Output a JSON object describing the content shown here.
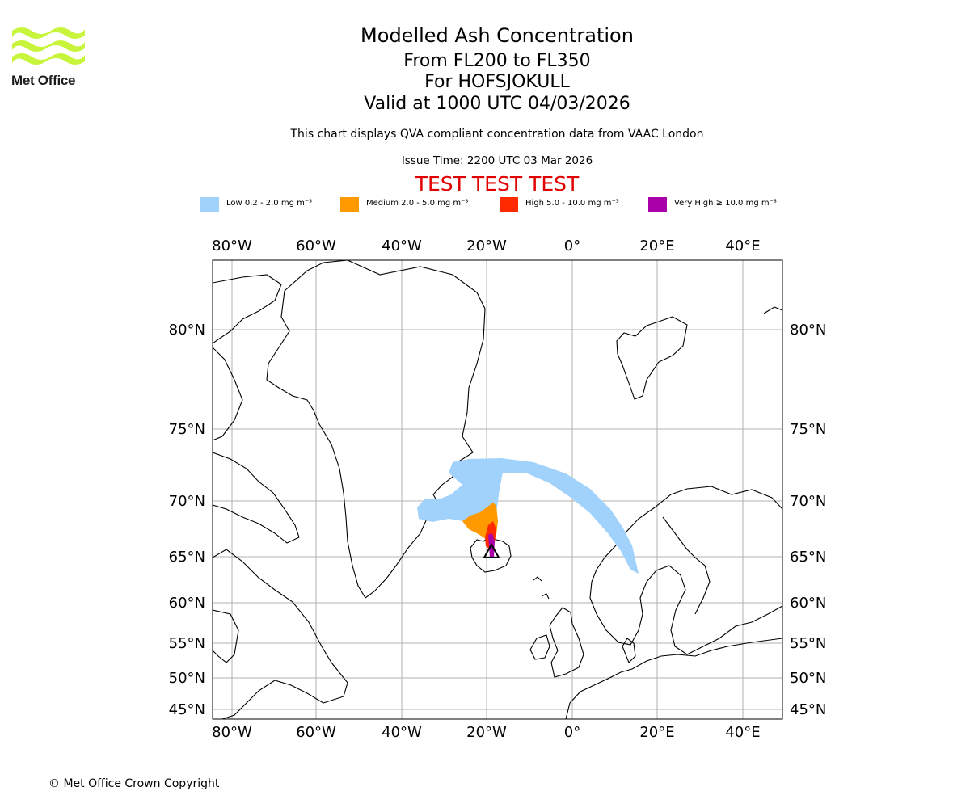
{
  "logo": {
    "text": "Met Office",
    "color": "#c8f53c"
  },
  "title": {
    "line1": "Modelled Ash Concentration",
    "line2": "From FL200 to FL350",
    "line3": "For HOFSJOKULL",
    "line4": "Valid at 1000 UTC 04/03/2026"
  },
  "subtitle": "This chart displays QVA compliant concentration data from VAAC London",
  "issue_time": "Issue Time: 2200 UTC 03 Mar 2026",
  "test_banner": "TEST TEST TEST",
  "legend": [
    {
      "label": "Low 0.2 - 2.0 mg m⁻³",
      "color": "#a0d2fb"
    },
    {
      "label": "Medium 2.0 - 5.0 mg m⁻³",
      "color": "#ff9900"
    },
    {
      "label": "High 5.0 - 10.0 mg m⁻³",
      "color": "#ff2a00"
    },
    {
      "label": "Very High  ≥  10.0 mg m⁻³",
      "color": "#aa00aa"
    }
  ],
  "map": {
    "lon_ticks": [
      "80°W",
      "60°W",
      "40°W",
      "20°W",
      "0°",
      "20°E",
      "40°E"
    ],
    "lat_ticks": [
      "80°N",
      "75°N",
      "70°N",
      "65°N",
      "60°N",
      "55°N",
      "50°N",
      "45°N"
    ],
    "volcano": "HOFSJOKULL"
  },
  "copyright": "© Met Office Crown Copyright"
}
